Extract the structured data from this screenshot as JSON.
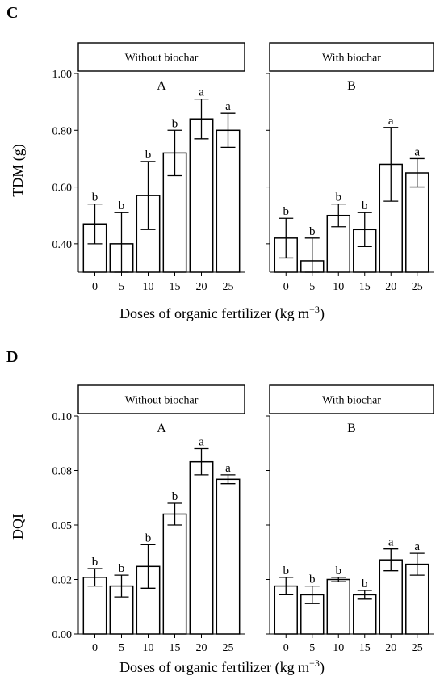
{
  "charts": [
    {
      "letter": "C",
      "ylabel": "TDM (g)",
      "xlabel_prefix": "Doses of organic fertilizer (kg m",
      "xlabel_sup": "−3",
      "xlabel_suffix": ")",
      "y_ticks": [
        {
          "value": 0.4,
          "label": "0.40"
        },
        {
          "value": 0.6,
          "label": "0.60"
        },
        {
          "value": 0.8,
          "label": "0.80"
        },
        {
          "value": 1.0,
          "label": "1.00"
        }
      ]
    },
    {
      "letter": "D",
      "ylabel": "DQI",
      "xlabel_prefix": "Doses of organic fertilizer (kg m",
      "xlabel_sup": "−3",
      "xlabel_suffix": ")",
      "y_ticks": [
        {
          "value": 0.0,
          "label": "0.00"
        },
        {
          "value": 0.025,
          "label": "0.02"
        },
        {
          "value": 0.05,
          "label": "0.05"
        },
        {
          "value": 0.075,
          "label": "0.08"
        },
        {
          "value": 0.1,
          "label": "0.10"
        }
      ]
    }
  ],
  "chart_data": [
    {
      "type": "bar",
      "ylabel": "TDM (g)",
      "xlabel": "Doses of organic fertilizer (kg m−3)",
      "ylim": [
        0.3,
        1.0
      ],
      "panels": [
        {
          "strip": "Without biochar",
          "group_letter": "A",
          "categories": [
            "0",
            "5",
            "10",
            "15",
            "20",
            "25"
          ],
          "values": [
            0.47,
            0.4,
            0.57,
            0.72,
            0.84,
            0.8
          ],
          "error": [
            0.07,
            0.11,
            0.12,
            0.08,
            0.07,
            0.06
          ],
          "sig": [
            "b",
            "b",
            "b",
            "b",
            "a",
            "a"
          ]
        },
        {
          "strip": "With biochar",
          "group_letter": "B",
          "categories": [
            "0",
            "5",
            "10",
            "15",
            "20",
            "25"
          ],
          "values": [
            0.42,
            0.34,
            0.5,
            0.45,
            0.68,
            0.65
          ],
          "error": [
            0.07,
            0.08,
            0.04,
            0.06,
            0.13,
            0.05
          ],
          "sig": [
            "b",
            "b",
            "b",
            "b",
            "a",
            "a"
          ]
        }
      ]
    },
    {
      "type": "bar",
      "ylabel": "DQI",
      "xlabel": "Doses of organic fertilizer (kg m−3)",
      "ylim": [
        0.0,
        0.1
      ],
      "panels": [
        {
          "strip": "Without biochar",
          "group_letter": "A",
          "categories": [
            "0",
            "5",
            "10",
            "15",
            "20",
            "25"
          ],
          "values": [
            0.026,
            0.022,
            0.031,
            0.055,
            0.079,
            0.071
          ],
          "error": [
            0.004,
            0.005,
            0.01,
            0.005,
            0.006,
            0.002
          ],
          "sig": [
            "b",
            "b",
            "b",
            "b",
            "a",
            "a"
          ]
        },
        {
          "strip": "With biochar",
          "group_letter": "B",
          "categories": [
            "0",
            "5",
            "10",
            "15",
            "20",
            "25"
          ],
          "values": [
            0.022,
            0.018,
            0.025,
            0.018,
            0.034,
            0.032
          ],
          "error": [
            0.004,
            0.004,
            0.001,
            0.002,
            0.005,
            0.005
          ],
          "sig": [
            "b",
            "b",
            "b",
            "b",
            "a",
            "a"
          ]
        }
      ]
    }
  ]
}
